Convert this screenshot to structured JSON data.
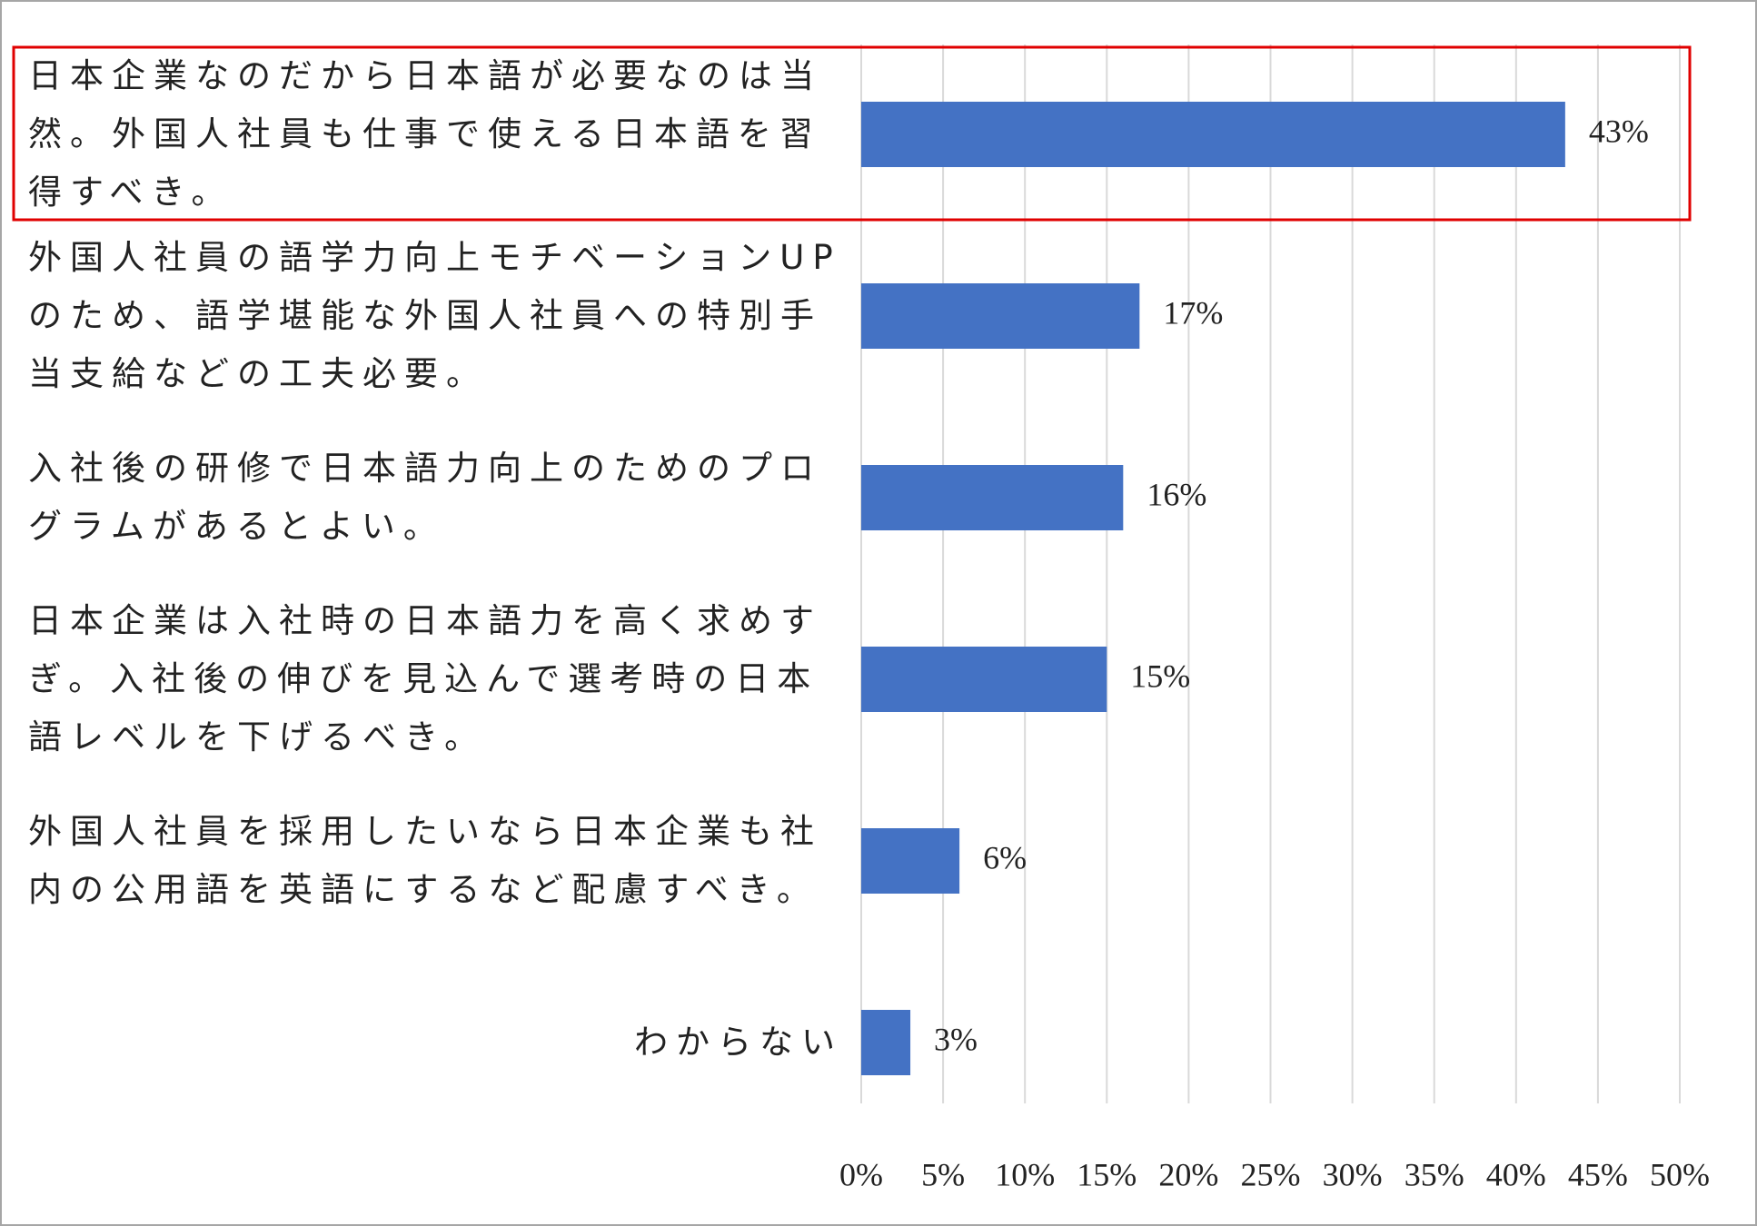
{
  "chart_data": {
    "type": "barh",
    "categories": [
      "日本企業なのだから日本語が必要なのは当然。外国人社員も仕事で使える日本語を習得すべき。",
      "外国人社員の語学力向上モチベーションUPのため、語学堪能な外国人社員への特別手当支給などの工夫必要。",
      "入社後の研修で日本語力向上のためのプログラムがあるとよい。",
      "日本企業は入社時の日本語力を高く求めすぎ。入社後の伸びを見込んで選考時の日本語レベルを下げるべき。",
      "外国人社員を採用したいなら日本企業も社内の公用語を英語にするなど配慮すべき。",
      "わからない"
    ],
    "values": [
      43,
      17,
      16,
      15,
      6,
      3
    ],
    "value_labels": [
      "43%",
      "17%",
      "16%",
      "15%",
      "6%",
      "3%"
    ],
    "color": "#4472c4",
    "xlim": [
      0,
      50
    ],
    "xticks": [
      {
        "value": 0,
        "label": "0%"
      },
      {
        "value": 5,
        "label": "5%"
      },
      {
        "value": 10,
        "label": "10%"
      },
      {
        "value": 15,
        "label": "15%"
      },
      {
        "value": 20,
        "label": "20%"
      },
      {
        "value": 25,
        "label": "25%"
      },
      {
        "value": 30,
        "label": "30%"
      },
      {
        "value": 35,
        "label": "35%"
      },
      {
        "value": 40,
        "label": "40%"
      },
      {
        "value": 45,
        "label": "45%"
      },
      {
        "value": 50,
        "label": "50%"
      }
    ],
    "grid": true,
    "highlight_category": 0,
    "highlight_color": "#e00000"
  }
}
